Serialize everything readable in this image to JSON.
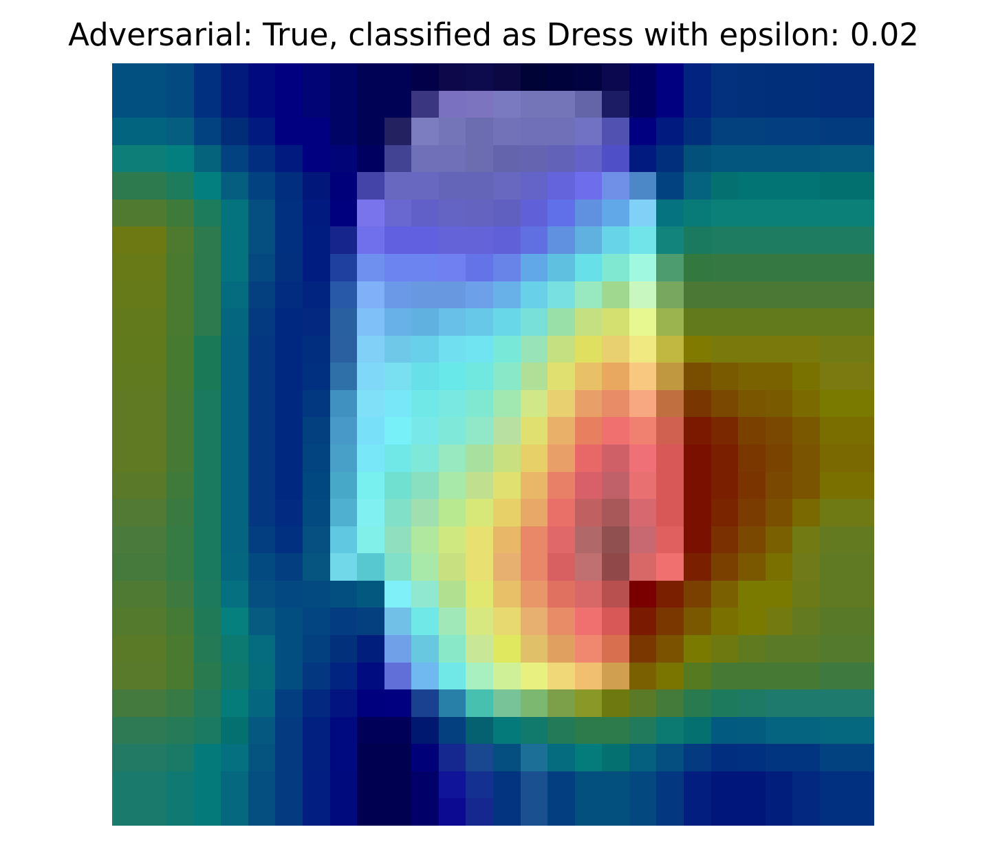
{
  "title": "Adversarial: True, classified as Dress with epsilon: 0.02",
  "chart_data": {
    "type": "heatmap",
    "title": "Adversarial: True, classified as Dress with epsilon: 0.02",
    "xlabel": "",
    "ylabel": "",
    "axes_visible": false,
    "grid": false,
    "rows": 28,
    "cols": 28,
    "cells": [
      [
        "#025080",
        "#025080",
        "#034a80",
        "#023080",
        "#011a7c",
        "#010b7f",
        "#000080",
        "#000474",
        "#000464",
        "#000355",
        "#000355",
        "#010049",
        "#0c0849",
        "#0d0a4d",
        "#0c0843",
        "#000336",
        "#00033b",
        "#000340",
        "#0b0850",
        "#000062",
        "#000080",
        "#022480",
        "#03317e",
        "#02307a",
        "#022f7a",
        "#022f7a",
        "#032c7a",
        "#032c7a"
      ],
      [
        "#025080",
        "#025080",
        "#034a80",
        "#023080",
        "#011a7c",
        "#010b7f",
        "#000080",
        "#000474",
        "#000464",
        "#000355",
        "#000355",
        "#3a3780",
        "#7a72c0",
        "#7d74c0",
        "#7a7ac0",
        "#7474b8",
        "#7474b8",
        "#6464a8",
        "#1c1c64",
        "#000062",
        "#000080",
        "#022480",
        "#03317e",
        "#02307a",
        "#022f7a",
        "#022f7a",
        "#032c7a",
        "#032c7a"
      ],
      [
        "#03647f",
        "#03647f",
        "#055d80",
        "#034280",
        "#012c77",
        "#011a80",
        "#000080",
        "#010080",
        "#000464",
        "#000355",
        "#23215f",
        "#7c7dc0",
        "#7474b8",
        "#6c6cb0",
        "#7272b8",
        "#7070b8",
        "#7070b8",
        "#7272c4",
        "#5151b2",
        "#000080",
        "#011a80",
        "#022f7c",
        "#03407e",
        "#03407e",
        "#033e80",
        "#033e80",
        "#033c7e",
        "#033c7e"
      ],
      [
        "#0d7f78",
        "#0d7f78",
        "#037f7f",
        "#05637c",
        "#034280",
        "#022e80",
        "#011a80",
        "#010080",
        "#000476",
        "#000060",
        "#434394",
        "#7070b8",
        "#7070b8",
        "#6c6cb0",
        "#6464ac",
        "#6464b0",
        "#6262b8",
        "#6262c8",
        "#4f4fc8",
        "#011a80",
        "#022f7c",
        "#03507a",
        "#03577e",
        "#03577e",
        "#03577e",
        "#03577e",
        "#035a7e",
        "#035a7e"
      ],
      [
        "#2d7a4f",
        "#2d7a4f",
        "#1c7c5c",
        "#037f7f",
        "#055d80",
        "#034280",
        "#022e80",
        "#01187a",
        "#00007a",
        "#4343a8",
        "#6868c0",
        "#6868c0",
        "#6464b8",
        "#6464b8",
        "#6868c0",
        "#6464c8",
        "#6464dc",
        "#6e6eec",
        "#7090e8",
        "#4c88c8",
        "#034280",
        "#05637f",
        "#047070",
        "#037474",
        "#037474",
        "#037474",
        "#037070",
        "#037070"
      ],
      [
        "#4f7a30",
        "#4f7a30",
        "#3e7a3a",
        "#1c7c5c",
        "#04737e",
        "#044f80",
        "#023080",
        "#011a80",
        "#00007f",
        "#7a74ec",
        "#6868d0",
        "#6060c8",
        "#6464c4",
        "#6464c0",
        "#6060c0",
        "#6060d8",
        "#6070e8",
        "#6090e0",
        "#60a8e8",
        "#80d0f8",
        "#057480",
        "#087a77",
        "#0a8078",
        "#0a8078",
        "#0a8078",
        "#0a8078",
        "#0a8078",
        "#0a8078"
      ],
      [
        "#6d7a14",
        "#6d7a14",
        "#4d7a2f",
        "#2d7a4f",
        "#05737e",
        "#044f80",
        "#023080",
        "#011c80",
        "#16258c",
        "#7070ec",
        "#6060e0",
        "#6060e0",
        "#6464d8",
        "#6464d8",
        "#6060d8",
        "#6070e0",
        "#6090e0",
        "#60b0e0",
        "#68d4e8",
        "#70e4e8",
        "#12847c",
        "#1a7a60",
        "#1e7d60",
        "#1e7d60",
        "#1e7d60",
        "#1e7d60",
        "#1e7d60",
        "#1e7d60"
      ],
      [
        "#687a18",
        "#687a18",
        "#4a7a30",
        "#2d7a4f",
        "#05737e",
        "#044a80",
        "#02307f",
        "#011c80",
        "#2040a0",
        "#7090f0",
        "#6c84f0",
        "#6c84f0",
        "#7080f0",
        "#6474e8",
        "#6884e8",
        "#60a8e8",
        "#60c0e0",
        "#68e0e8",
        "#80e8d0",
        "#a0f8e0",
        "#4c9c70",
        "#33783e",
        "#357842",
        "#357842",
        "#357842",
        "#357842",
        "#357842",
        "#357842"
      ],
      [
        "#667a1a",
        "#667a1a",
        "#4a7a30",
        "#2d7a4f",
        "#056c80",
        "#043f80",
        "#012c80",
        "#012480",
        "#2858a8",
        "#80b0f8",
        "#6c98e8",
        "#6898e0",
        "#6898e0",
        "#6ca0e8",
        "#68b0e8",
        "#68d0e8",
        "#78e0e0",
        "#98e8c0",
        "#a0d890",
        "#c8f8c0",
        "#78a860",
        "#4b7834",
        "#4b7834",
        "#4b7834",
        "#4b7834",
        "#4b7834",
        "#4b7834",
        "#4b7834"
      ],
      [
        "#627a1c",
        "#627a1c",
        "#4a7a30",
        "#2d7a4f",
        "#05667f",
        "#033a80",
        "#012880",
        "#022880",
        "#2860a0",
        "#80c0f8",
        "#68b0e8",
        "#60b0e0",
        "#68c0e8",
        "#68c8e8",
        "#68d8e8",
        "#78e0d8",
        "#98e0a8",
        "#c4e080",
        "#d4e070",
        "#e8f890",
        "#9cb450",
        "#627a1c",
        "#627a1c",
        "#627a1c",
        "#627a1c",
        "#627a1c",
        "#627a1c",
        "#627a1c"
      ],
      [
        "#607a1c",
        "#607a1c",
        "#467a30",
        "#1a7a58",
        "#05647f",
        "#033880",
        "#012880",
        "#022e80",
        "#2a60a0",
        "#80d0f8",
        "#70c8e8",
        "#68d0e8",
        "#70e0f0",
        "#70e4f0",
        "#78e8d8",
        "#98e4b8",
        "#c4e080",
        "#e0e060",
        "#e8d070",
        "#f0e880",
        "#c0b840",
        "#807a00",
        "#7a7a0c",
        "#7a7a0c",
        "#7a7a0c",
        "#7a7a0c",
        "#727a14",
        "#727a14"
      ],
      [
        "#607a20",
        "#607a20",
        "#467a30",
        "#1a7a58",
        "#05647f",
        "#033880",
        "#012880",
        "#023080",
        "#3070a8",
        "#80d8f8",
        "#78e0f0",
        "#68e0e8",
        "#68e8e8",
        "#70e8e0",
        "#88e8c8",
        "#b0e098",
        "#e0e070",
        "#e8c068",
        "#e8a860",
        "#f8c880",
        "#c09840",
        "#7a4e00",
        "#7a5a00",
        "#7a6200",
        "#7a6200",
        "#7a7200",
        "#7a7a10",
        "#7a7a10"
      ],
      [
        "#607a24",
        "#607a24",
        "#467a34",
        "#1a7a60",
        "#05647f",
        "#033880",
        "#012880",
        "#023880",
        "#4090c0",
        "#80e0f8",
        "#78e8f8",
        "#70e8e8",
        "#78e8e0",
        "#80e8d0",
        "#a0e8b0",
        "#d0e888",
        "#e8d070",
        "#e8a068",
        "#e88c68",
        "#f8a880",
        "#c07040",
        "#7a3600",
        "#7a4800",
        "#7a5600",
        "#7a5a00",
        "#7a6a00",
        "#7a7a00",
        "#7a7a00"
      ],
      [
        "#607a24",
        "#607a24",
        "#467a34",
        "#1a7a60",
        "#05647f",
        "#033880",
        "#012880",
        "#024080",
        "#4898c8",
        "#78e0f8",
        "#78f0f8",
        "#78e8e8",
        "#80e8d8",
        "#90e8c8",
        "#b8e0a0",
        "#e0e070",
        "#e8b068",
        "#e88060",
        "#f07070",
        "#f08070",
        "#d06050",
        "#7a1800",
        "#7a2800",
        "#7a4000",
        "#7a4800",
        "#7a5800",
        "#7a6e00",
        "#7a6e00"
      ],
      [
        "#607a24",
        "#607a24",
        "#467a34",
        "#1a7a60",
        "#05647f",
        "#033880",
        "#012880",
        "#024480",
        "#48a0c8",
        "#78e8f8",
        "#70e8e8",
        "#80e8d8",
        "#98e8c0",
        "#a8e0a0",
        "#c8e080",
        "#e8d068",
        "#e8a068",
        "#e86868",
        "#d06068",
        "#f07078",
        "#d85858",
        "#7a1000",
        "#7a2000",
        "#7a3800",
        "#7a4400",
        "#7a5400",
        "#7a6800",
        "#7a6800"
      ],
      [
        "#5a7a2a",
        "#5a7a2a",
        "#407a3a",
        "#1a7a60",
        "#05647f",
        "#033880",
        "#012880",
        "#024880",
        "#48a8c8",
        "#78f0f0",
        "#70e0d0",
        "#88e0c0",
        "#a8e8a8",
        "#c0e090",
        "#e0e070",
        "#e8b868",
        "#e88068",
        "#d86068",
        "#c06068",
        "#e87070",
        "#d85858",
        "#7a1000",
        "#7a2000",
        "#7a3400",
        "#7a4800",
        "#7a5400",
        "#7a7000",
        "#7a7000"
      ],
      [
        "#527a34",
        "#527a34",
        "#3a7a40",
        "#1a7a60",
        "#05647f",
        "#033880",
        "#022a80",
        "#034a80",
        "#50b0d0",
        "#80f0f0",
        "#80e0c8",
        "#a0e0b0",
        "#b8e890",
        "#d8e878",
        "#e8d068",
        "#e8a868",
        "#e87068",
        "#c06060",
        "#a85858",
        "#d86870",
        "#d85858",
        "#7a1000",
        "#7a2400",
        "#7a3c00",
        "#7a5000",
        "#7a6800",
        "#707a14",
        "#707a14"
      ],
      [
        "#4a7a3c",
        "#4a7a3c",
        "#367a44",
        "#1a7a60",
        "#05647f",
        "#033e80",
        "#023080",
        "#055080",
        "#60c8e0",
        "#80f0e8",
        "#90e0c0",
        "#b0e8a0",
        "#d0e880",
        "#e8e070",
        "#e8b868",
        "#e88868",
        "#e06868",
        "#b06868",
        "#905050",
        "#c86870",
        "#e06060",
        "#7a1000",
        "#7a3000",
        "#7a4800",
        "#7a6000",
        "#727a14",
        "#647a20",
        "#647a20"
      ],
      [
        "#467a3c",
        "#467a3c",
        "#367a44",
        "#1a7a60",
        "#05667f",
        "#034a80",
        "#033f80",
        "#055580",
        "#70d8e8",
        "#58c8d0",
        "#80e0c8",
        "#a8e8a8",
        "#c8e080",
        "#e8e070",
        "#e8b070",
        "#e88868",
        "#d86060",
        "#c07070",
        "#904848",
        "#d86868",
        "#f07070",
        "#7a2000",
        "#7a4000",
        "#7a5800",
        "#7a7000",
        "#707a18",
        "#607a24",
        "#607a24"
      ],
      [
        "#4e7a34",
        "#4e7a34",
        "#3e7a40",
        "#1e7a5c",
        "#05707f",
        "#044f80",
        "#034880",
        "#034a80",
        "#035080",
        "#035880",
        "#80f0f8",
        "#90e8d0",
        "#b0e090",
        "#e0e870",
        "#e8c068",
        "#e89868",
        "#e07060",
        "#d86868",
        "#b85050",
        "#7a0000",
        "#7a2000",
        "#7a4000",
        "#7a6000",
        "#7a7a00",
        "#7a7a00",
        "#6c7a18",
        "#607a24",
        "#607a24"
      ],
      [
        "#547a2e",
        "#547a2e",
        "#447a36",
        "#207a58",
        "#05807f",
        "#055c80",
        "#034e80",
        "#034580",
        "#033c80",
        "#043f80",
        "#70c0e8",
        "#70e8e8",
        "#a0e8b8",
        "#d8e880",
        "#e8d870",
        "#e8b070",
        "#e88c68",
        "#f07070",
        "#d85858",
        "#7a1a00",
        "#7a3800",
        "#7a5800",
        "#7a7000",
        "#7a7a00",
        "#727a10",
        "#647a20",
        "#587a28",
        "#587a28"
      ],
      [
        "#5a7a28",
        "#5a7a28",
        "#4a7a30",
        "#247a54",
        "#0d7a72",
        "#056c80",
        "#034e80",
        "#034080",
        "#02307a",
        "#011e7c",
        "#70a0e8",
        "#68c8e0",
        "#88e8c8",
        "#c8e898",
        "#e0e860",
        "#e0c068",
        "#e0a060",
        "#f08870",
        "#d87050",
        "#7a3800",
        "#7a5200",
        "#7a7a00",
        "#6e7a10",
        "#607a20",
        "#5a7a28",
        "#5a7a28",
        "#547a2e",
        "#547a2e"
      ],
      [
        "#587a2a",
        "#587a2a",
        "#4a7a30",
        "#2a7a50",
        "#0f7a6c",
        "#056c7a",
        "#034e80",
        "#033880",
        "#012480",
        "#000c80",
        "#6070d8",
        "#70b8f0",
        "#70e8e8",
        "#a8f0c0",
        "#d0f098",
        "#e8f080",
        "#f0d878",
        "#f0c070",
        "#d0a050",
        "#7a6000",
        "#7a7400",
        "#567a20",
        "#467a34",
        "#467a34",
        "#467a34",
        "#467a34",
        "#3e7a40",
        "#3e7a40"
      ],
      [
        "#447a3e",
        "#447a3e",
        "#387a46",
        "#227a5a",
        "#057c7a",
        "#05667f",
        "#033e80",
        "#022880",
        "#011480",
        "#00007f",
        "#000080",
        "#1a4090",
        "#2880a8",
        "#48c0b0",
        "#78c498",
        "#7cb870",
        "#7ca04a",
        "#8a9828",
        "#6e7a10",
        "#5a7a28",
        "#447a3a",
        "#2a7a50",
        "#1e7a5c",
        "#1e7a64",
        "#1e7a6c",
        "#1e7a6c",
        "#1e7a6c",
        "#1e7a6c"
      ],
      [
        "#2d7a54",
        "#2d7a54",
        "#267a58",
        "#1a7a62",
        "#057070",
        "#05587f",
        "#033a80",
        "#022080",
        "#000a80",
        "#000058",
        "#000058",
        "#011870",
        "#044080",
        "#056070",
        "#057a7a",
        "#127a6c",
        "#227a58",
        "#2d7a4a",
        "#2d7a4a",
        "#227a5c",
        "#0d7a72",
        "#057070",
        "#035a80",
        "#035c80",
        "#05647f",
        "#05647f",
        "#05687f",
        "#05687f"
      ],
      [
        "#227a64",
        "#227a64",
        "#1a7a66",
        "#057a7a",
        "#05707f",
        "#05547f",
        "#033a80",
        "#022080",
        "#000a80",
        "#000050",
        "#000050",
        "#000078",
        "#142890",
        "#1a4890",
        "#044f80",
        "#1c7098",
        "#056c7f",
        "#057c7c",
        "#057070",
        "#05607f",
        "#044f80",
        "#033a80",
        "#022e80",
        "#023080",
        "#023580",
        "#023580",
        "#034280",
        "#034280"
      ],
      [
        "#1a7a6c",
        "#1a7a6c",
        "#107a72",
        "#057a7a",
        "#05687f",
        "#044f80",
        "#033a80",
        "#021e80",
        "#000a7c",
        "#000050",
        "#000050",
        "#000068",
        "#101498",
        "#143090",
        "#033480",
        "#1a5090",
        "#033e80",
        "#03507e",
        "#03507e",
        "#044880",
        "#033880",
        "#021f80",
        "#01167a",
        "#01167a",
        "#011e7c",
        "#022880",
        "#023080",
        "#023080"
      ],
      [
        "#1a7a6c",
        "#1a7a6c",
        "#107a72",
        "#057a7a",
        "#05687f",
        "#044f80",
        "#033a80",
        "#021e80",
        "#000a7c",
        "#000050",
        "#000050",
        "#000068",
        "#0c0a90",
        "#142890",
        "#033480",
        "#1a5090",
        "#033e80",
        "#03507e",
        "#03507e",
        "#044880",
        "#033880",
        "#021f80",
        "#01167a",
        "#01167a",
        "#011e7c",
        "#022880",
        "#023080",
        "#023080"
      ]
    ]
  }
}
